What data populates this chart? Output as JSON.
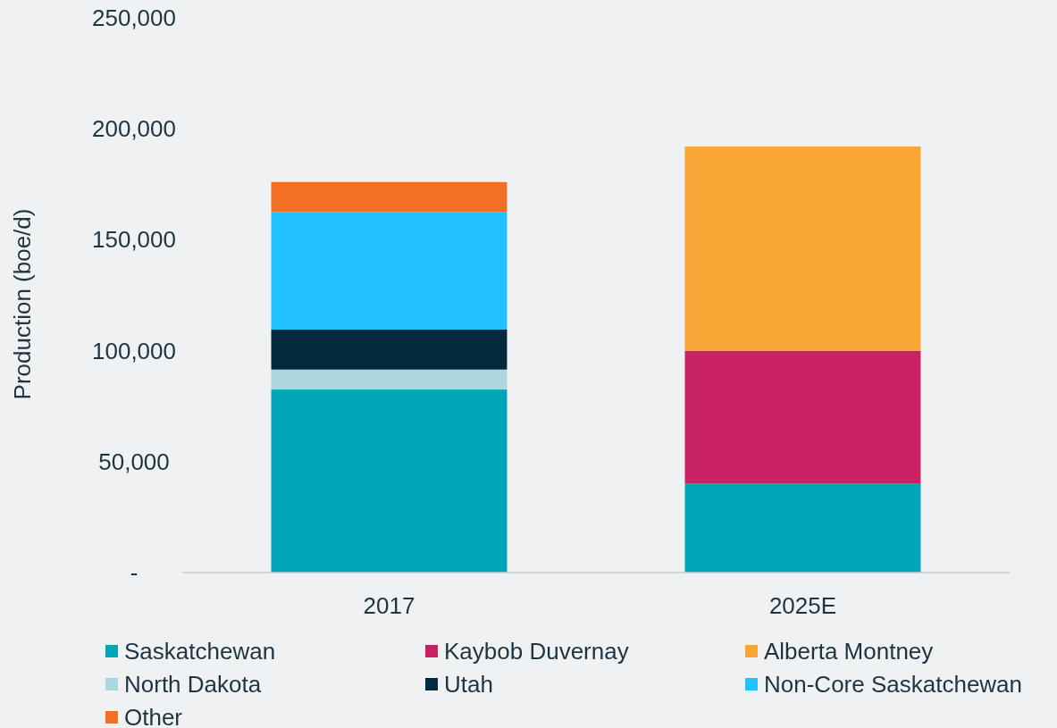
{
  "chart_data": {
    "type": "bar",
    "stacked": true,
    "ylabel": "Production (boe/d)",
    "categories": [
      "2017",
      "2025E"
    ],
    "series": [
      {
        "name": "Saskatchewan",
        "color": "#00a5b8",
        "values": [
          82500,
          40000
        ]
      },
      {
        "name": "Kaybob Duvernay",
        "color": "#c92264",
        "values": [
          null,
          60000
        ]
      },
      {
        "name": "Alberta Montney",
        "color": "#f9a636",
        "values": [
          null,
          92000
        ]
      },
      {
        "name": "North Dakota",
        "color": "#acd5de",
        "values": [
          9000,
          null
        ]
      },
      {
        "name": "Utah",
        "color": "#002b3e",
        "values": [
          18000,
          null
        ]
      },
      {
        "name": "Non-Core Saskatchewan",
        "color": "#22c1ff",
        "values": [
          53000,
          null
        ]
      },
      {
        "name": "Other",
        "color": "#f36f23",
        "values": [
          13500,
          null
        ]
      }
    ],
    "ylim": [
      0,
      250000
    ],
    "yticks": [
      {
        "value": 0,
        "label": "-"
      },
      {
        "value": 50000,
        "label": "50,000"
      },
      {
        "value": 100000,
        "label": "100,000"
      },
      {
        "value": 150000,
        "label": "150,000"
      },
      {
        "value": 200000,
        "label": "200,000"
      },
      {
        "value": 250000,
        "label": "250,000"
      }
    ],
    "grid": false,
    "legend": "bottom"
  }
}
